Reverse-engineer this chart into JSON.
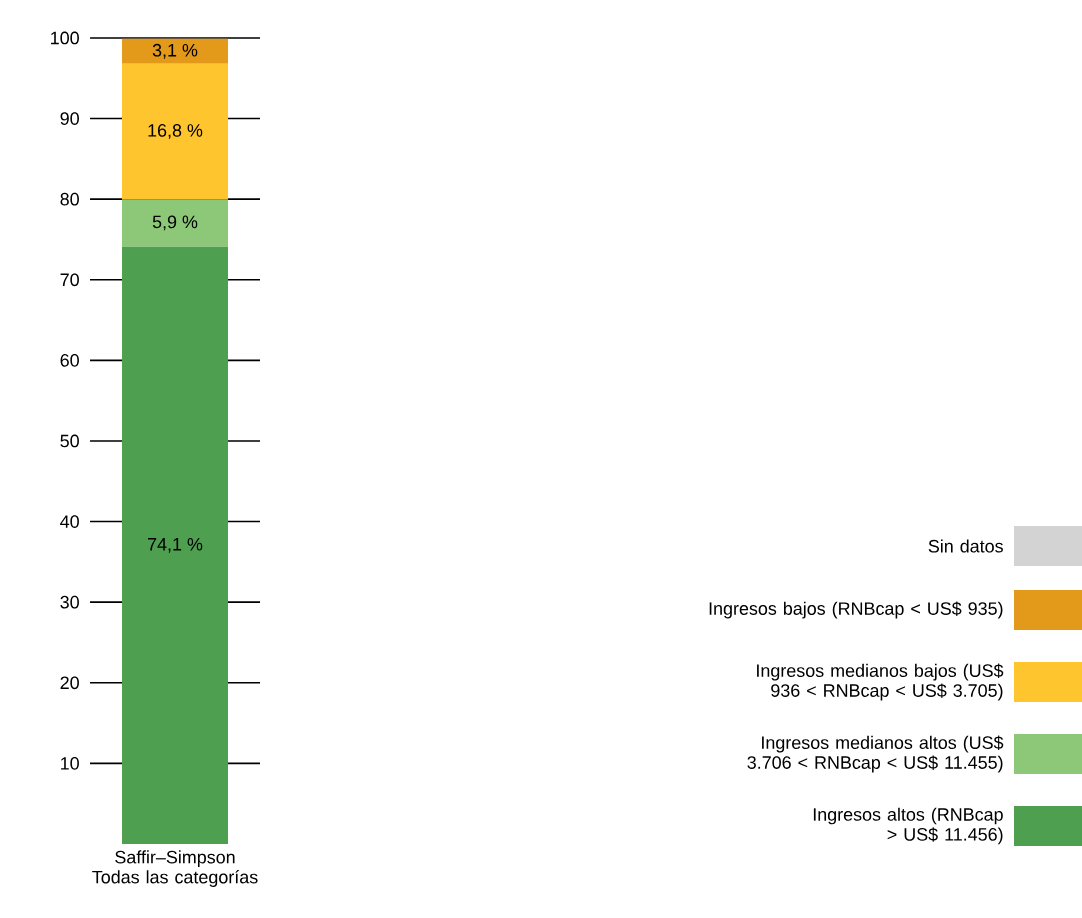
{
  "chart_data": {
    "type": "bar",
    "stacked": true,
    "categories": [
      "Saffir–Simpson Todas las categorías"
    ],
    "ylim": [
      0,
      100
    ],
    "yticks": [
      10,
      20,
      30,
      40,
      50,
      60,
      70,
      80,
      90,
      100
    ],
    "grid": "y",
    "legend": "right",
    "series": [
      {
        "name": "Ingresos altos (RNBcap > US$ 11.456)",
        "color": "#4f9f50",
        "values": [
          74.1
        ],
        "value_labels": [
          "74,1 %"
        ]
      },
      {
        "name": "Ingresos medianos altos (US$ 3.706 < RNBcap < US$ 11.455)",
        "color": "#8dc878",
        "values": [
          5.9
        ],
        "value_labels": [
          "5,9 %"
        ]
      },
      {
        "name": "Ingresos medianos bajos (US$ 936 < RNBcap < US$ 3.705)",
        "color": "#fec52e",
        "values": [
          16.8
        ],
        "value_labels": [
          "16,8 %"
        ]
      },
      {
        "name": "Ingresos bajos (RNBcap < US$ 935)",
        "color": "#e39a1a",
        "values": [
          3.1
        ],
        "value_labels": [
          "3,1 %"
        ]
      },
      {
        "name": "Sin datos",
        "color": "#d3d3d3",
        "values": [
          0
        ],
        "value_labels": [
          null
        ]
      }
    ]
  }
}
